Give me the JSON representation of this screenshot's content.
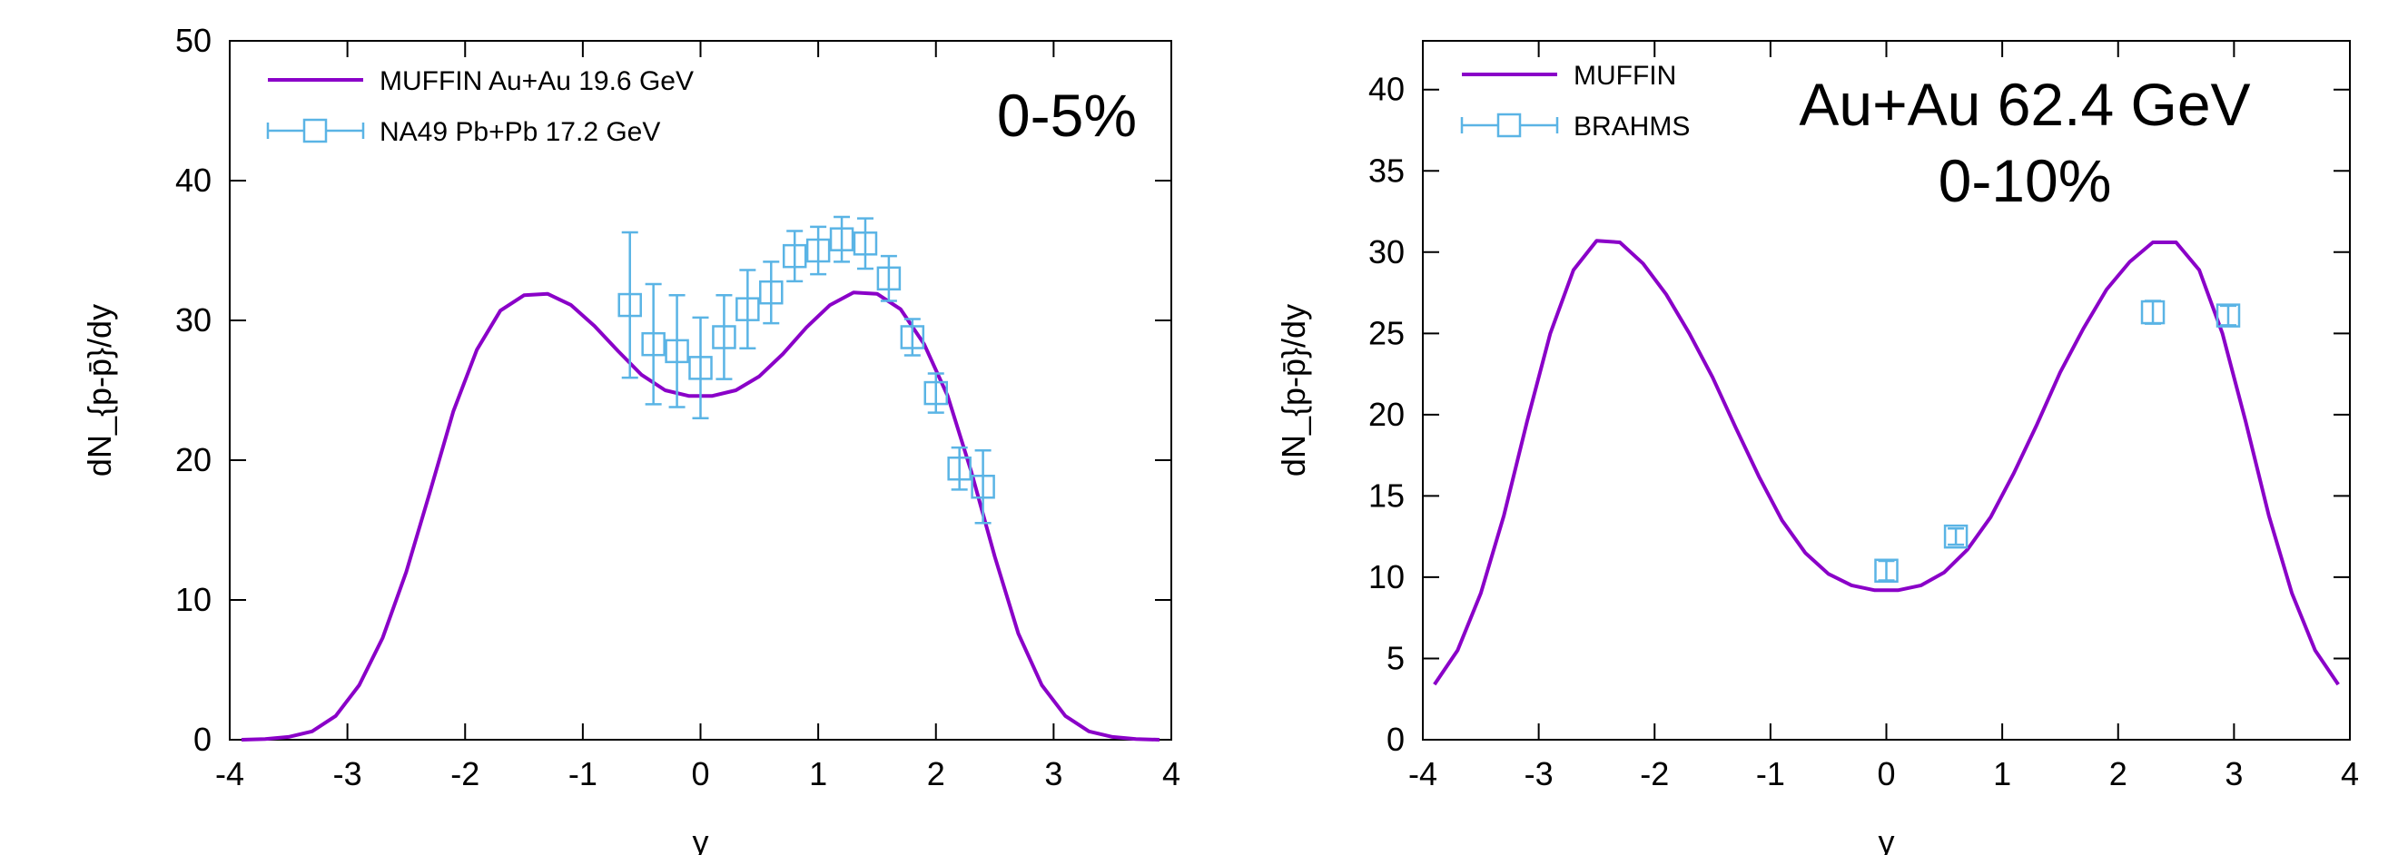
{
  "chart_data": [
    {
      "type": "line",
      "panel_label": "0-5%",
      "xlabel": "y",
      "ylabel": "dN_{p-p̄}/dy",
      "xlim": [
        -4,
        4
      ],
      "ylim": [
        0,
        50
      ],
      "xticks": [
        "-4",
        "-3",
        "-2",
        "-1",
        "0",
        "1",
        "2",
        "3",
        "4"
      ],
      "yticks": [
        "0",
        "10",
        "20",
        "30",
        "40",
        "50"
      ],
      "grid": false,
      "legend_position": "top-left",
      "series": [
        {
          "name": "MUFFIN Au+Au 19.6 GeV",
          "kind": "line",
          "color": "#8a00c8",
          "x": [
            -3.9,
            -3.7,
            -3.5,
            -3.3,
            -3.1,
            -2.9,
            -2.7,
            -2.5,
            -2.3,
            -2.1,
            -1.9,
            -1.7,
            -1.5,
            -1.3,
            -1.1,
            -0.9,
            -0.7,
            -0.5,
            -0.3,
            -0.1,
            0.1,
            0.3,
            0.5,
            0.7,
            0.9,
            1.1,
            1.3,
            1.5,
            1.7,
            1.9,
            2.1,
            2.3,
            2.5,
            2.7,
            2.9,
            3.1,
            3.3,
            3.5,
            3.7,
            3.9
          ],
          "y": [
            0.0,
            0.05,
            0.2,
            0.6,
            1.7,
            3.9,
            7.3,
            12.0,
            17.7,
            23.5,
            27.9,
            30.7,
            31.8,
            31.9,
            31.1,
            29.6,
            27.8,
            26.1,
            25.0,
            24.6,
            24.6,
            25.0,
            26.0,
            27.6,
            29.5,
            31.1,
            32.0,
            31.9,
            30.8,
            28.3,
            24.6,
            19.2,
            13.1,
            7.6,
            3.9,
            1.7,
            0.6,
            0.2,
            0.05,
            0.0
          ]
        },
        {
          "name": "NA49 Pb+Pb 17.2 GeV",
          "kind": "points_with_errors",
          "color": "#5ab4e5",
          "x": [
            -0.6,
            -0.4,
            -0.2,
            0.0,
            0.2,
            0.4,
            0.6,
            0.8,
            1.0,
            1.2,
            1.4,
            1.6,
            1.8,
            2.0,
            2.2,
            2.4
          ],
          "y": [
            31.1,
            28.3,
            27.8,
            26.6,
            28.8,
            30.8,
            32.0,
            34.6,
            35.0,
            35.8,
            35.5,
            33.0,
            28.8,
            24.8,
            19.4,
            18.1
          ],
          "yerr": [
            5.2,
            4.3,
            4.0,
            3.6,
            3.0,
            2.8,
            2.2,
            1.8,
            1.7,
            1.6,
            1.8,
            1.6,
            1.3,
            1.4,
            1.5,
            2.6
          ]
        }
      ]
    },
    {
      "type": "line",
      "panel_label": "Au+Au 62.4 GeV\n0-10%",
      "panel_label_lines": [
        "Au+Au 62.4 GeV",
        "0-10%"
      ],
      "xlabel": "y",
      "ylabel": "dN_{p-p̄}/dy",
      "xlim": [
        -4,
        4
      ],
      "ylim": [
        0,
        43
      ],
      "xticks": [
        "-4",
        "-3",
        "-2",
        "-1",
        "0",
        "1",
        "2",
        "3",
        "4"
      ],
      "yticks": [
        "0",
        "5",
        "10",
        "15",
        "20",
        "25",
        "30",
        "35",
        "40"
      ],
      "grid": false,
      "legend_position": "top-left",
      "series": [
        {
          "name": "MUFFIN",
          "kind": "line",
          "color": "#8a00c8",
          "x": [
            -3.9,
            -3.7,
            -3.5,
            -3.3,
            -3.1,
            -2.9,
            -2.7,
            -2.5,
            -2.3,
            -2.1,
            -1.9,
            -1.7,
            -1.5,
            -1.3,
            -1.1,
            -0.9,
            -0.7,
            -0.5,
            -0.3,
            -0.1,
            0.1,
            0.3,
            0.5,
            0.7,
            0.9,
            1.1,
            1.3,
            1.5,
            1.7,
            1.9,
            2.1,
            2.3,
            2.5,
            2.7,
            2.9,
            3.1,
            3.3,
            3.5,
            3.7,
            3.9
          ],
          "y": [
            3.4,
            5.5,
            9.0,
            13.8,
            19.6,
            25.0,
            28.9,
            30.7,
            30.6,
            29.3,
            27.4,
            25.0,
            22.3,
            19.2,
            16.2,
            13.5,
            11.5,
            10.2,
            9.5,
            9.2,
            9.2,
            9.5,
            10.3,
            11.7,
            13.7,
            16.4,
            19.4,
            22.6,
            25.3,
            27.7,
            29.4,
            30.6,
            30.6,
            28.9,
            25.0,
            19.6,
            13.8,
            9.0,
            5.5,
            3.4
          ]
        },
        {
          "name": "BRAHMS",
          "kind": "points_with_errors",
          "color": "#5ab4e5",
          "x": [
            0.0,
            0.6,
            2.3,
            2.95
          ],
          "y": [
            10.4,
            12.5,
            26.3,
            26.1
          ],
          "yerr": [
            0.6,
            0.5,
            0.7,
            0.6
          ]
        }
      ]
    }
  ]
}
